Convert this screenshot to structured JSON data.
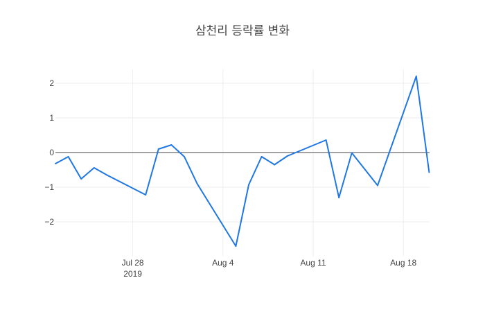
{
  "chart_data": {
    "type": "line",
    "title": "삼천리 등락률 변화",
    "xlabel": "",
    "ylabel": "",
    "x_range": [
      "2019-07-22",
      "2019-08-19"
    ],
    "ylim": [
      -3.0,
      2.4
    ],
    "grid": true,
    "legend": "none",
    "y_ticks": [
      {
        "value": -2,
        "label": "−2"
      },
      {
        "value": -1,
        "label": "−1"
      },
      {
        "value": 0,
        "label": "0"
      },
      {
        "value": 1,
        "label": "1"
      },
      {
        "value": 2,
        "label": "2"
      }
    ],
    "x_ticks": [
      {
        "value": "2019-07-28",
        "label": "Jul 28",
        "sublabel": "2019"
      },
      {
        "value": "2019-08-04",
        "label": "Aug 4",
        "sublabel": ""
      },
      {
        "value": "2019-08-11",
        "label": "Aug 11",
        "sublabel": ""
      },
      {
        "value": "2019-08-18",
        "label": "Aug 18",
        "sublabel": ""
      }
    ],
    "series": [
      {
        "name": "",
        "color": "#1f77e4",
        "x": [
          "2019-07-22",
          "2019-07-23",
          "2019-07-24",
          "2019-07-25",
          "2019-07-26",
          "2019-07-29",
          "2019-07-30",
          "2019-07-31",
          "2019-08-01",
          "2019-08-02",
          "2019-08-05",
          "2019-08-06",
          "2019-08-07",
          "2019-08-08",
          "2019-08-09",
          "2019-08-12",
          "2019-08-13",
          "2019-08-14",
          "2019-08-16",
          "2019-08-19",
          "2019-08-20"
        ],
        "values": [
          -0.32,
          -0.12,
          -0.76,
          -0.44,
          -0.65,
          -1.22,
          0.1,
          0.22,
          -0.12,
          -0.9,
          -2.7,
          -0.93,
          -0.12,
          -0.35,
          -0.1,
          0.36,
          -1.3,
          -0.01,
          -0.95,
          2.2,
          -0.57
        ]
      }
    ]
  }
}
